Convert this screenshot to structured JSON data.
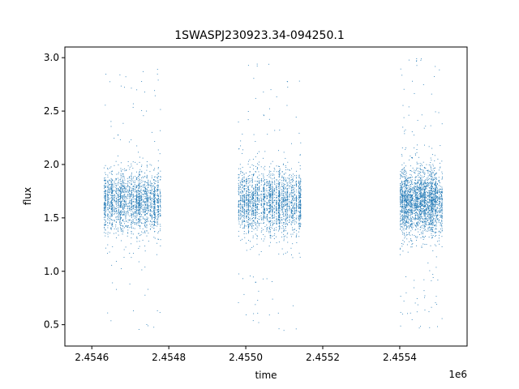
{
  "chart_data": {
    "type": "scatter",
    "title": "1SWASPJ230923.34-094250.1",
    "xlabel": "time",
    "ylabel": "flux",
    "x_offset_label": "1e6",
    "xlim": [
      2454530,
      2455575
    ],
    "ylim": [
      0.3,
      3.1
    ],
    "x_ticks": [
      2454600,
      2454800,
      2455000,
      2455200,
      2455400
    ],
    "x_tick_labels": [
      "2.4546",
      "2.4548",
      "2.4550",
      "2.4552",
      "2.4554"
    ],
    "y_ticks": [
      0.5,
      1.0,
      1.5,
      2.0,
      2.5,
      3.0
    ],
    "y_tick_labels": [
      "0.5",
      "1.0",
      "1.5",
      "2.0",
      "2.5",
      "3.0"
    ],
    "point_color": "#1f77b4",
    "grid": false,
    "series": [
      {
        "clusters": [
          {
            "x_start": 2454630,
            "x_end": 2454780,
            "y_center": 1.65,
            "y_spread": 0.25,
            "outlier_range": [
              0.45,
              2.95
            ]
          },
          {
            "x_start": 2454980,
            "x_end": 2455145,
            "y_center": 1.65,
            "y_spread": 0.27,
            "outlier_range": [
              0.42,
              2.95
            ]
          },
          {
            "x_start": 2455400,
            "x_end": 2455510,
            "y_center": 1.65,
            "y_spread": 0.28,
            "outlier_range": [
              0.43,
              3.0
            ]
          }
        ]
      }
    ]
  }
}
